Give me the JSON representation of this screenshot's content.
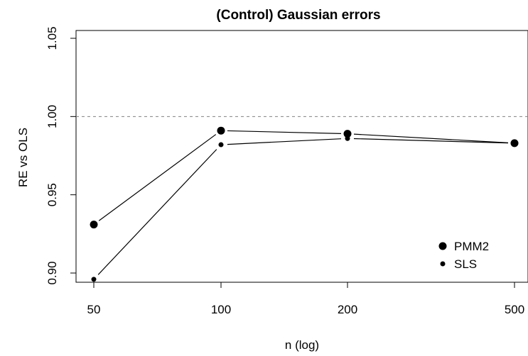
{
  "chart_data": {
    "type": "line",
    "title": "(Control) Gaussian errors",
    "xlabel": "n (log)",
    "ylabel": "RE vs OLS",
    "x_scale": "log",
    "x": [
      50,
      100,
      200,
      500
    ],
    "x_tick_labels": [
      "50",
      "100",
      "200",
      "500"
    ],
    "ylim": [
      0.895,
      1.05
    ],
    "y_ticks": [
      0.9,
      0.95,
      1.0,
      1.05
    ],
    "y_tick_labels": [
      "0.90",
      "0.95",
      "1.00",
      "1.05"
    ],
    "reference_line": {
      "y": 1.0,
      "style": "dashed",
      "color": "#808080"
    },
    "series": [
      {
        "name": "PMM2",
        "values": [
          0.931,
          0.991,
          0.989,
          0.983
        ],
        "marker": "large-dot"
      },
      {
        "name": "SLS",
        "values": [
          0.896,
          0.982,
          0.986,
          0.983
        ],
        "marker": "small-dot"
      }
    ],
    "legend_position": "bottom-right",
    "grid": false,
    "colors": {
      "line": "#000000",
      "marker": "#000000"
    }
  }
}
